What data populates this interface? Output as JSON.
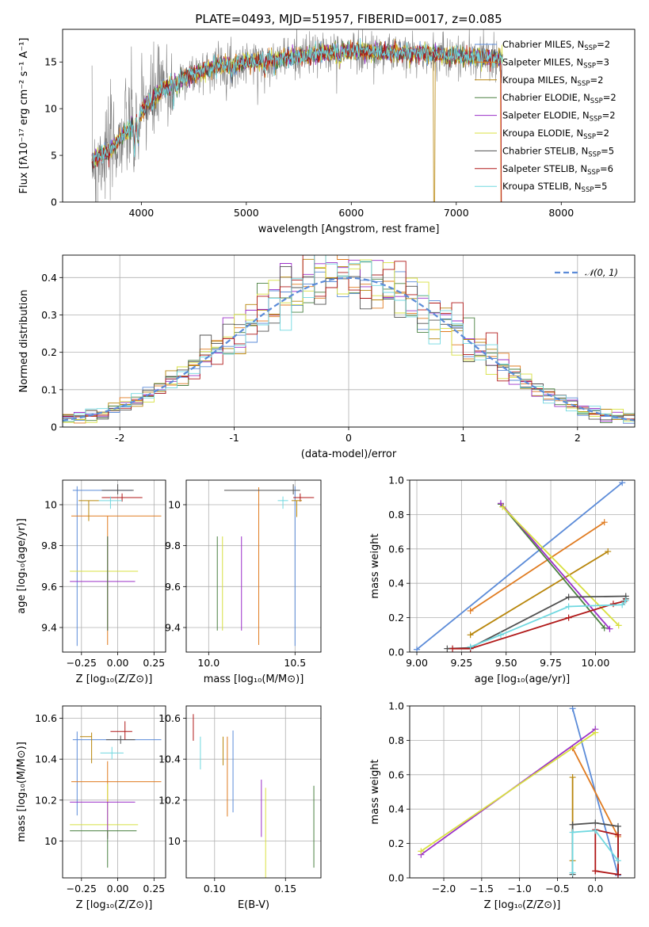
{
  "title": "PLATE=0493, MJD=51957, FIBERID=0017, z=0.085",
  "model_colors": {
    "Chabrier MILES": "#5b8bd8",
    "Salpeter MILES": "#e07b20",
    "Kroupa MILES": "#b8860b",
    "Chabrier ELODIE": "#4a8040",
    "Salpeter ELODIE": "#9b30c8",
    "Kroupa ELODIE": "#d8e040",
    "Chabrier STELIB": "#505050",
    "Salpeter STELIB": "#b01818",
    "Kroupa STELIB": "#70d8e0",
    "gaussian": "#5b8bd8",
    "observed": "#808080"
  },
  "chart_data": [
    {
      "type": "line",
      "title": "PLATE=0493, MJD=51957, FIBERID=0017, z=0.085",
      "xlabel": "wavelength [Angstrom, rest frame]",
      "ylabel": "Flux [fλ10⁻¹⁷ erg cm⁻² s⁻¹ A⁻¹]",
      "xlim": [
        3250,
        8700
      ],
      "ylim": [
        0,
        18.5
      ],
      "xticks": [
        4000,
        5000,
        6000,
        7000,
        8000
      ],
      "yticks": [
        0,
        5,
        10,
        15
      ],
      "legend": [
        {
          "main": "Chabrier MILES, N",
          "sub": "SSP",
          "tail": "=2",
          "color": "Chabrier MILES"
        },
        {
          "main": "Salpeter MILES, N",
          "sub": "SSP",
          "tail": "=3",
          "color": "Salpeter MILES"
        },
        {
          "main": "Kroupa MILES, N",
          "sub": "SSP",
          "tail": "=2",
          "color": "Kroupa MILES"
        },
        {
          "main": "Chabrier ELODIE, N",
          "sub": "SSP",
          "tail": "=2",
          "color": "Chabrier ELODIE"
        },
        {
          "main": "Salpeter ELODIE, N",
          "sub": "SSP",
          "tail": "=2",
          "color": "Salpeter ELODIE"
        },
        {
          "main": "Kroupa ELODIE, N",
          "sub": "SSP",
          "tail": "=2",
          "color": "Kroupa ELODIE"
        },
        {
          "main": "Chabrier STELIB, N",
          "sub": "SSP",
          "tail": "=5",
          "color": "Chabrier STELIB"
        },
        {
          "main": "Salpeter STELIB, N",
          "sub": "SSP",
          "tail": "=6",
          "color": "Salpeter STELIB"
        },
        {
          "main": "Kroupa STELIB, N",
          "sub": "SSP",
          "tail": "=5",
          "color": "Kroupa STELIB"
        }
      ],
      "legend_position": "upper right",
      "continuum_knots": [
        [
          3530,
          4.5
        ],
        [
          3700,
          5.5
        ],
        [
          3850,
          7.5
        ],
        [
          3950,
          8.5
        ],
        [
          4050,
          10.5
        ],
        [
          4200,
          12
        ],
        [
          4400,
          13.3
        ],
        [
          4700,
          14.5
        ],
        [
          5000,
          15
        ],
        [
          5300,
          15.3
        ],
        [
          5600,
          15.8
        ],
        [
          6000,
          16.2
        ],
        [
          6400,
          16
        ],
        [
          6800,
          15.8
        ],
        [
          7200,
          15.5
        ],
        [
          7440,
          15.3
        ]
      ],
      "observed_range": [
        3530,
        7440
      ],
      "dips": [
        [
          3580,
          0
        ],
        [
          6790,
          0
        ],
        [
          7420,
          0
        ]
      ]
    },
    {
      "type": "bar",
      "subtype": "step-histogram",
      "xlabel": "(data-model)/error",
      "ylabel": "Normed distribution",
      "xlim": [
        -2.5,
        2.5
      ],
      "ylim": [
        0,
        0.46
      ],
      "xticks": [
        -2,
        -1,
        0,
        1,
        2
      ],
      "yticks": [
        0,
        0.1,
        0.2,
        0.3,
        0.4
      ],
      "bins": [
        -2.5,
        2.5,
        50
      ],
      "gaussian_label": "𝒩(0, 1)",
      "legend_position": "upper right",
      "grid": true
    },
    {
      "type": "scatter",
      "subtype": "errorbar-crosses",
      "xlabel": "Z [log₁₀(Z/Z⊙)]",
      "ylabel": "age  [log₁₀(age/yr)]",
      "xlim": [
        -0.38,
        0.33
      ],
      "ylim": [
        9.28,
        10.12
      ],
      "xticks": [
        -0.25,
        0,
        0.25
      ],
      "xticklabels": [
        "−0.25",
        "0.00",
        "0.25"
      ],
      "yticks": [
        9.4,
        9.6,
        9.8,
        10.0
      ],
      "points": [
        {
          "model": "Chabrier MILES",
          "x": -0.28,
          "xerr": [
            0.03,
            0.38
          ],
          "y": 10.07,
          "yerr": [
            0.76,
            0.02
          ]
        },
        {
          "model": "Salpeter MILES",
          "x": -0.07,
          "xerr": [
            0.25,
            0.37
          ],
          "y": 9.945,
          "yerr": [
            0.63,
            0.0
          ]
        },
        {
          "model": "Kroupa ELODIE",
          "x": -0.07,
          "xerr": [
            0.26,
            0.21
          ],
          "y": 9.675,
          "yerr": [
            0.29,
            0.17
          ]
        },
        {
          "model": "Salpeter ELODIE",
          "x": -0.07,
          "xerr": [
            0.26,
            0.19
          ],
          "y": 9.625,
          "yerr": [
            0.24,
            0.22
          ]
        },
        {
          "model": "Chabrier ELODIE",
          "x": -0.07,
          "xerr": [
            0.0,
            0.0
          ],
          "y": 9.625,
          "yerr": [
            0.24,
            0.22
          ]
        },
        {
          "model": "Chabrier STELIB",
          "x": 0.0,
          "xerr": [
            0.11,
            0.11
          ],
          "y": 10.07,
          "yerr": [
            0.02,
            0.03
          ]
        },
        {
          "model": "Salpeter STELIB",
          "x": 0.03,
          "xerr": [
            0.14,
            0.14
          ],
          "y": 10.035,
          "yerr": [
            0.02,
            0.02
          ]
        },
        {
          "model": "Kroupa STELIB",
          "x": -0.05,
          "xerr": [
            0.08,
            0.08
          ],
          "y": 10.02,
          "yerr": [
            0.04,
            0.02
          ]
        },
        {
          "model": "Kroupa MILES",
          "x": -0.2,
          "xerr": [
            0.07,
            0.07
          ],
          "y": 10.02,
          "yerr": [
            0.1,
            0.0
          ]
        }
      ],
      "grid": true
    },
    {
      "type": "scatter",
      "subtype": "errorbar-crosses",
      "xlabel": "mass [log₁₀(M/M⊙)]",
      "ylabel": "",
      "xlim": [
        9.87,
        10.65
      ],
      "ylim": [
        9.28,
        10.12
      ],
      "xticks": [
        10.0,
        10.5
      ],
      "xticklabels": [
        "10.0",
        "10.5"
      ],
      "yticks": [
        9.4,
        9.6,
        9.8,
        10.0
      ],
      "points": [
        {
          "model": "Chabrier MILES",
          "x": 10.5,
          "xerr": [
            0.0,
            0.0
          ],
          "y": 10.07,
          "yerr": [
            0.76,
            0.02
          ]
        },
        {
          "model": "Salpeter MILES",
          "x": 10.29,
          "xerr": [
            0.0,
            0.0
          ],
          "y": 9.945,
          "yerr": [
            0.63,
            0.14
          ]
        },
        {
          "model": "Kroupa ELODIE",
          "x": 10.08,
          "xerr": [
            0.0,
            0.0
          ],
          "y": 9.675,
          "yerr": [
            0.29,
            0.17
          ]
        },
        {
          "model": "Salpeter ELODIE",
          "x": 10.19,
          "xerr": [
            0.0,
            0.0
          ],
          "y": 9.625,
          "yerr": [
            0.24,
            0.22
          ]
        },
        {
          "model": "Chabrier ELODIE",
          "x": 10.05,
          "xerr": [
            0.0,
            0.0
          ],
          "y": 9.625,
          "yerr": [
            0.24,
            0.22
          ]
        },
        {
          "model": "Chabrier STELIB",
          "x": 10.49,
          "xerr": [
            0.4,
            0.04
          ],
          "y": 10.07,
          "yerr": [
            0.02,
            0.03
          ]
        },
        {
          "model": "Salpeter STELIB",
          "x": 10.53,
          "xerr": [
            0.04,
            0.08
          ],
          "y": 10.035,
          "yerr": [
            0.02,
            0.02
          ]
        },
        {
          "model": "Kroupa STELIB",
          "x": 10.43,
          "xerr": [
            0.03,
            0.03
          ],
          "y": 10.02,
          "yerr": [
            0.04,
            0.02
          ]
        },
        {
          "model": "Kroupa MILES",
          "x": 10.51,
          "xerr": [
            0.03,
            0.03
          ],
          "y": 10.02,
          "yerr": [
            0.08,
            0.0
          ]
        }
      ],
      "grid": true
    },
    {
      "type": "line",
      "xlabel": "age  [log₁₀(age/yr)]",
      "ylabel": "mass weight",
      "xlim": [
        8.96,
        10.22
      ],
      "ylim": [
        0,
        1
      ],
      "xticks": [
        9.0,
        9.25,
        9.5,
        9.75,
        10.0
      ],
      "xticklabels": [
        "9.00",
        "9.25",
        "9.50",
        "9.75",
        "10.00"
      ],
      "yticks": [
        0,
        0.2,
        0.4,
        0.6,
        0.8,
        1.0
      ],
      "yticklabels": [
        "0.0",
        "0.2",
        "0.4",
        "0.6",
        "0.8",
        "1.0"
      ],
      "series": [
        {
          "model": "Chabrier MILES",
          "x": [
            9.0,
            10.15
          ],
          "y": [
            0.015,
            0.985
          ]
        },
        {
          "model": "Salpeter MILES",
          "x": [
            9.3,
            10.05
          ],
          "y": [
            0.24,
            0.755
          ]
        },
        {
          "model": "Kroupa MILES",
          "x": [
            9.3,
            10.07
          ],
          "y": [
            0.1,
            0.585
          ]
        },
        {
          "model": "Chabrier ELODIE",
          "x": [
            9.47,
            10.05
          ],
          "y": [
            0.86,
            0.14
          ]
        },
        {
          "model": "Salpeter ELODIE",
          "x": [
            9.47,
            10.08
          ],
          "y": [
            0.865,
            0.135
          ]
        },
        {
          "model": "Kroupa ELODIE",
          "x": [
            9.48,
            10.13
          ],
          "y": [
            0.845,
            0.155
          ]
        },
        {
          "model": "Chabrier STELIB",
          "x": [
            9.17,
            9.3,
            9.85,
            10.17,
            10.17
          ],
          "y": [
            0.02,
            0.025,
            0.32,
            0.325,
            0.31
          ]
        },
        {
          "model": "Salpeter STELIB",
          "x": [
            9.2,
            9.3,
            9.85,
            10.1,
            10.16
          ],
          "y": [
            0.02,
            0.02,
            0.2,
            0.28,
            0.295
          ]
        },
        {
          "model": "Kroupa STELIB",
          "x": [
            9.3,
            9.47,
            9.85,
            10.15,
            10.17
          ],
          "y": [
            0.03,
            0.1,
            0.265,
            0.275,
            0.3
          ]
        }
      ],
      "grid": true
    },
    {
      "type": "scatter",
      "subtype": "errorbar-crosses",
      "xlabel": "Z [log₁₀(Z/Z⊙)]",
      "ylabel": "mass [log₁₀(M/M⊙)]",
      "xlim": [
        -0.38,
        0.33
      ],
      "ylim": [
        9.82,
        10.66
      ],
      "xticks": [
        -0.25,
        0,
        0.25
      ],
      "xticklabels": [
        "−0.25",
        "0.00",
        "0.25"
      ],
      "yticks": [
        10.0,
        10.2,
        10.4,
        10.6
      ],
      "points": [
        {
          "model": "Chabrier MILES",
          "x": -0.28,
          "xerr": [
            0.03,
            0.58
          ],
          "y": 10.495,
          "yerr": [
            0.37,
            0.04
          ]
        },
        {
          "model": "Salpeter MILES",
          "x": -0.07,
          "xerr": [
            0.25,
            0.37
          ],
          "y": 10.29,
          "yerr": [
            0.1,
            0.1
          ]
        },
        {
          "model": "Kroupa MILES",
          "x": -0.18,
          "xerr": [
            0.08,
            0.0
          ],
          "y": 10.51,
          "yerr": [
            0.13,
            0.02
          ]
        },
        {
          "model": "Kroupa ELODIE",
          "x": -0.07,
          "xerr": [
            0.26,
            0.21
          ],
          "y": 10.08,
          "yerr": [
            0.06,
            0.2
          ]
        },
        {
          "model": "Salpeter ELODIE",
          "x": -0.07,
          "xerr": [
            0.26,
            0.19
          ],
          "y": 10.19,
          "yerr": [
            0.18,
            0.0
          ]
        },
        {
          "model": "Chabrier ELODIE",
          "x": -0.07,
          "xerr": [
            0.26,
            0.2
          ],
          "y": 10.05,
          "yerr": [
            0.18,
            0.0
          ]
        },
        {
          "model": "Chabrier STELIB",
          "x": 0.02,
          "xerr": [
            0.1,
            0.1
          ],
          "y": 10.495,
          "yerr": [
            0.02,
            0.02
          ]
        },
        {
          "model": "Salpeter STELIB",
          "x": 0.05,
          "xerr": [
            0.1,
            0.05
          ],
          "y": 10.535,
          "yerr": [
            0.04,
            0.05
          ]
        },
        {
          "model": "Kroupa STELIB",
          "x": -0.04,
          "xerr": [
            0.08,
            0.08
          ],
          "y": 10.43,
          "yerr": [
            0.03,
            0.03
          ]
        }
      ],
      "grid": true
    },
    {
      "type": "scatter",
      "subtype": "errorbars",
      "xlabel": "E(B-V)",
      "ylabel": "",
      "xlim": [
        0.08,
        0.175
      ],
      "ylim": [
        9.82,
        10.66
      ],
      "xticks": [
        0.1,
        0.15
      ],
      "xticklabels": [
        "0.10",
        "0.15"
      ],
      "yticks": [
        10.0,
        10.2,
        10.4,
        10.6
      ],
      "points": [
        {
          "model": "Salpeter STELIB",
          "x": 0.085,
          "y": 10.55,
          "yerr": [
            0.06,
            0.07
          ]
        },
        {
          "model": "Kroupa STELIB",
          "x": 0.09,
          "y": 10.43,
          "yerr": [
            0.08,
            0.08
          ]
        },
        {
          "model": "Kroupa MILES",
          "x": 0.106,
          "y": 10.51,
          "yerr": [
            0.14,
            0.0
          ]
        },
        {
          "model": "Salpeter MILES",
          "x": 0.109,
          "y": 10.29,
          "yerr": [
            0.17,
            0.22
          ]
        },
        {
          "model": "Chabrier MILES",
          "x": 0.113,
          "y": 10.33,
          "yerr": [
            0.19,
            0.21
          ]
        },
        {
          "model": "Salpeter ELODIE",
          "x": 0.133,
          "y": 10.16,
          "yerr": [
            0.14,
            0.14
          ]
        },
        {
          "model": "Kroupa ELODIE",
          "x": 0.136,
          "y": 10.04,
          "yerr": [
            0.22,
            0.22
          ]
        },
        {
          "model": "Chabrier ELODIE",
          "x": 0.17,
          "y": 10.07,
          "yerr": [
            0.2,
            0.2
          ]
        }
      ],
      "grid": true
    },
    {
      "type": "line",
      "xlabel": "Z [log₁₀(Z/Z⊙)]",
      "ylabel": "mass weight",
      "xlim": [
        -2.45,
        0.52
      ],
      "ylim": [
        0,
        1
      ],
      "xticks": [
        -2.0,
        -1.5,
        -1.0,
        -0.5,
        0.0
      ],
      "xticklabels": [
        "−2.0",
        "−1.5",
        "−1.0",
        "−0.5",
        "0.0"
      ],
      "yticks": [
        0,
        0.2,
        0.4,
        0.6,
        0.8,
        1.0
      ],
      "yticklabels": [
        "0.0",
        "0.2",
        "0.4",
        "0.6",
        "0.8",
        "1.0"
      ],
      "series": [
        {
          "model": "Chabrier MILES",
          "x": [
            -0.3,
            0.3
          ],
          "y": [
            0.985,
            0.015
          ]
        },
        {
          "model": "Salpeter MILES",
          "x": [
            -0.3,
            0.3
          ],
          "y": [
            0.755,
            0.24
          ]
        },
        {
          "model": "Kroupa MILES",
          "x": [
            -0.3,
            -0.3
          ],
          "y": [
            0.585,
            0.1
          ]
        },
        {
          "model": "Salpeter ELODIE",
          "x": [
            -2.3,
            0.0
          ],
          "y": [
            0.135,
            0.865
          ]
        },
        {
          "model": "Kroupa ELODIE",
          "x": [
            -2.3,
            0.0
          ],
          "y": [
            0.155,
            0.845
          ]
        },
        {
          "model": "Chabrier STELIB",
          "x": [
            -0.3,
            -0.3,
            0.0,
            0.3,
            0.3
          ],
          "y": [
            0.02,
            0.31,
            0.32,
            0.3,
            0.02
          ]
        },
        {
          "model": "Salpeter STELIB",
          "x": [
            0.0,
            0.0,
            0.3,
            0.3,
            0.0
          ],
          "y": [
            0.04,
            0.28,
            0.25,
            0.02,
            0.04
          ]
        },
        {
          "model": "Kroupa STELIB",
          "x": [
            -0.3,
            -0.3,
            0.0,
            0.3
          ],
          "y": [
            0.03,
            0.265,
            0.275,
            0.1
          ]
        }
      ],
      "grid": true
    }
  ]
}
